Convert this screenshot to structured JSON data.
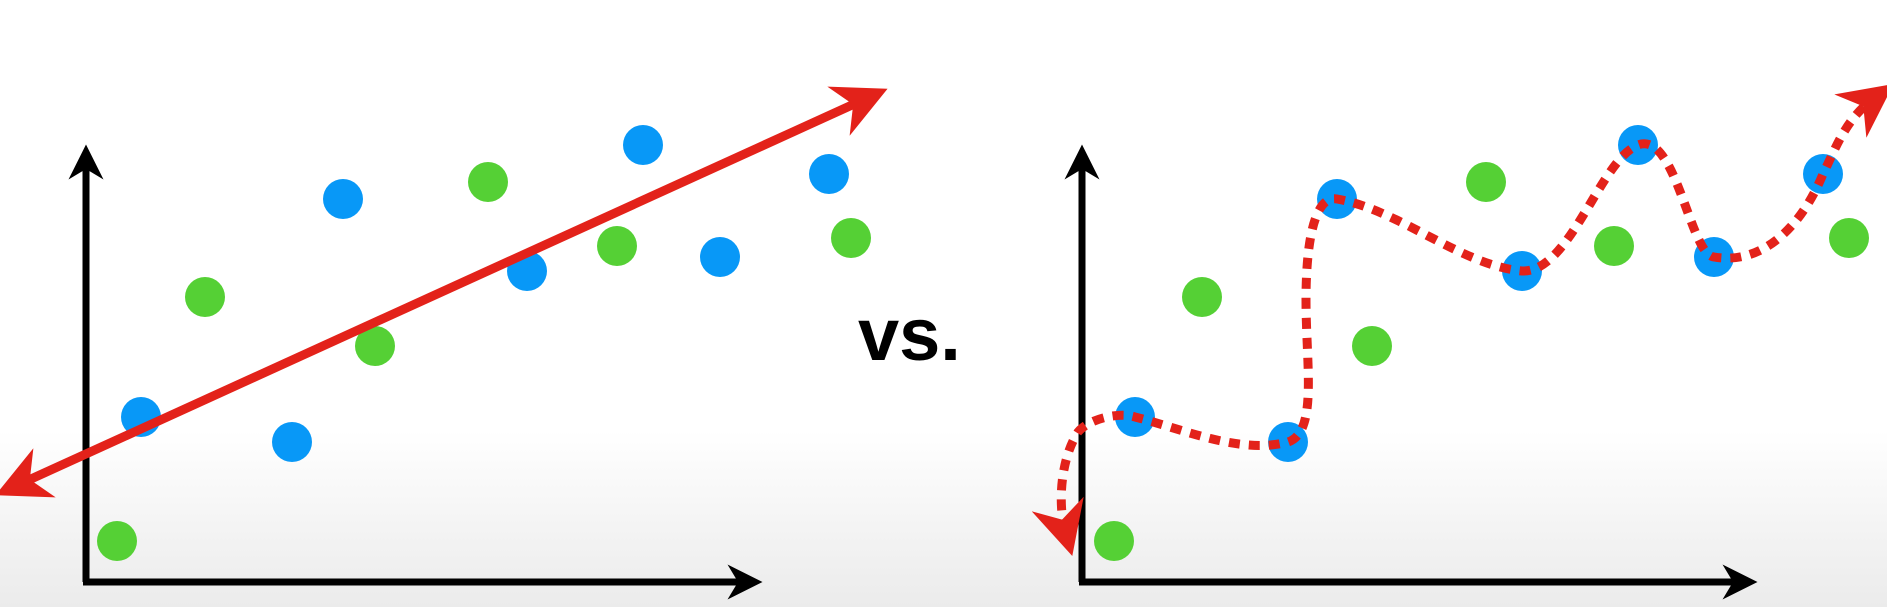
{
  "colors": {
    "axis": "#000000",
    "blue_point": "#0898f7",
    "green_point": "#55d035",
    "fit_line": "#e3221a",
    "background_bottom": "#ebebeb"
  },
  "separator_text": "vs.",
  "left_panel": {
    "description_icon": "straight-line-fit",
    "blue_points": [
      [
        141,
        417
      ],
      [
        292,
        442
      ],
      [
        343,
        199
      ],
      [
        527,
        271
      ],
      [
        643,
        145
      ],
      [
        720,
        257
      ],
      [
        829,
        174
      ]
    ],
    "green_points": [
      [
        117,
        541
      ],
      [
        205,
        297
      ],
      [
        375,
        346
      ],
      [
        488,
        182
      ],
      [
        617,
        246
      ],
      [
        851,
        238
      ]
    ]
  },
  "right_panel": {
    "description_icon": "wiggly-overfit-line",
    "blue_points": [
      [
        1135,
        417
      ],
      [
        1288,
        442
      ],
      [
        1337,
        199
      ],
      [
        1522,
        271
      ],
      [
        1638,
        145
      ],
      [
        1714,
        257
      ],
      [
        1823,
        174
      ]
    ],
    "green_points": [
      [
        1114,
        541
      ],
      [
        1202,
        297
      ],
      [
        1372,
        346
      ],
      [
        1486,
        182
      ],
      [
        1614,
        246
      ],
      [
        1849,
        238
      ]
    ]
  }
}
